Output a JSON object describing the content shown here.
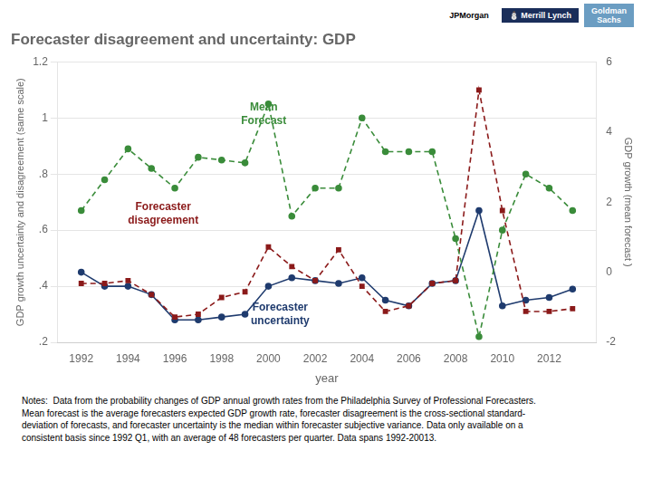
{
  "chart_data": {
    "type": "line",
    "title": "Forecaster disagreement and uncertainty: GDP",
    "xlabel": "year",
    "ylabel": "GDP growth uncertainty and disagreement (same scale)",
    "y2label": "GDP growth (mean forecast )",
    "x": [
      1992,
      1993,
      1994,
      1995,
      1996,
      1997,
      1998,
      1999,
      2000,
      2001,
      2002,
      2003,
      2004,
      2005,
      2006,
      2007,
      2008,
      2009,
      2010,
      2011,
      2012,
      2013
    ],
    "series": [
      {
        "color": "#3a8c3a",
        "line_style": "dashed",
        "marker": "circle",
        "values": [
          0.67,
          0.78,
          0.89,
          0.82,
          0.75,
          0.86,
          0.85,
          0.84,
          1.05,
          0.65,
          0.75,
          0.75,
          1.0,
          0.88,
          0.88,
          0.88,
          0.57,
          0.22,
          0.6,
          0.8,
          0.75,
          0.67
        ]
      },
      {
        "color": "#8b1a1a",
        "line_style": "dashed",
        "marker": "square",
        "values": [
          0.41,
          0.41,
          0.42,
          0.37,
          0.29,
          0.3,
          0.36,
          0.38,
          0.54,
          0.47,
          0.42,
          0.53,
          0.4,
          0.31,
          0.33,
          0.41,
          0.42,
          1.1,
          0.67,
          0.31,
          0.31,
          0.32
        ]
      },
      {
        "color": "#1f3b6e",
        "line_style": "solid",
        "marker": "circle",
        "values": [
          0.45,
          0.4,
          0.4,
          0.37,
          0.28,
          0.28,
          0.29,
          0.3,
          0.4,
          0.43,
          0.42,
          0.41,
          0.43,
          0.35,
          0.33,
          0.41,
          0.42,
          0.67,
          0.33,
          0.35,
          0.36,
          0.39
        ]
      }
    ],
    "xlim": [
      1991.0,
      2014.0
    ],
    "xticks": [
      1992,
      1994,
      1996,
      1998,
      2000,
      2002,
      2004,
      2006,
      2008,
      2010,
      2012
    ],
    "ylim": [
      0.2,
      1.2
    ],
    "yticks": [
      {
        "value": 0.2,
        "label": ".2"
      },
      {
        "value": 0.4,
        "label": ".4"
      },
      {
        "value": 0.6,
        "label": ".6"
      },
      {
        "value": 0.8,
        "label": ".8"
      },
      1,
      1.2
    ],
    "y2lim": [
      -2,
      6
    ],
    "y2ticks": [
      -2,
      0,
      2,
      4,
      6
    ],
    "grid": "y",
    "annotations": [
      {
        "text": "Mean\nForecast",
        "x": 1999.8,
        "y": 0.97,
        "color": "#3a8c3a"
      },
      {
        "text": "Forecaster\ndisagreement",
        "x": 1995.5,
        "y": 0.615,
        "color": "#8b1a1a"
      },
      {
        "text": "Forecaster\nuncertainty",
        "x": 2000.5,
        "y": 0.255,
        "color": "#1f3b6e"
      }
    ],
    "logos": [
      {
        "text": "JPMorgan"
      },
      {
        "text": "⛄ Merrill Lynch",
        "color": "#1a2e5a"
      },
      {
        "text": "Goldman\nSachs",
        "color": "#6b9dc2"
      }
    ],
    "notes": [
      "Notes:  Data from the probability changes of GDP annual growth rates from the Philadelphia Survey of Professional Forecasters.",
      "Mean forecast is the average forecasters expected GDP growth rate, forecaster disagreement is the cross-sectional standard-",
      "deviation of forecasts, and forecaster uncertainty is the median within forecaster subjective variance. Data only available on a",
      "consistent basis since 1992 Q1, with an average of 48 forecasters per quarter. Data spans 1992-20013."
    ]
  }
}
